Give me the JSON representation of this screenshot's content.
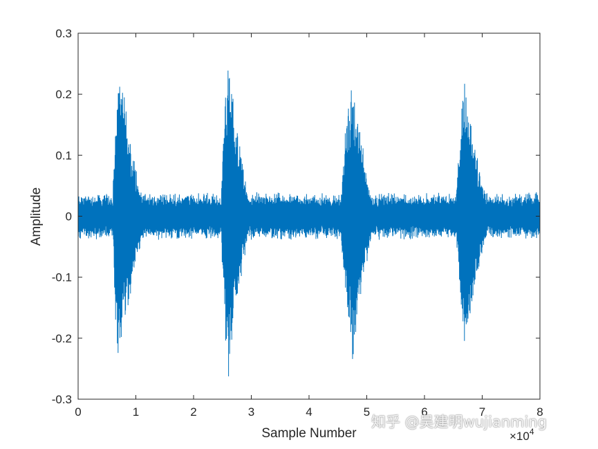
{
  "chart_data": {
    "type": "line",
    "title": "",
    "xlabel": "Sample Number",
    "ylabel": "Amplitude",
    "xlim": [
      0,
      80000
    ],
    "ylim": [
      -0.3,
      0.3
    ],
    "x_ticks": [
      0,
      1,
      2,
      3,
      4,
      5,
      6,
      7,
      8
    ],
    "x_tick_labels": [
      "0",
      "1",
      "2",
      "3",
      "4",
      "5",
      "6",
      "7",
      "8"
    ],
    "x_exponent_base": "×10",
    "x_exponent_power": "4",
    "y_ticks": [
      0.3,
      0.2,
      0.1,
      0,
      -0.1,
      -0.2,
      -0.3
    ],
    "y_tick_labels": [
      "0.3",
      "0.2",
      "0.1",
      "0",
      "-0.1",
      "-0.2",
      "-0.3"
    ],
    "grid": false,
    "line_color": "#0072BD",
    "noise_floor_amplitude": 0.04,
    "series": [
      {
        "bursts": [
          {
            "start": 6000,
            "peak_at": 7000,
            "end": 12500,
            "peak_amplitude": 0.27
          },
          {
            "start": 24800,
            "peak_at": 26000,
            "end": 30500,
            "peak_amplitude": 0.285
          },
          {
            "start": 45500,
            "peak_at": 47500,
            "end": 52000,
            "peak_amplitude": 0.25
          },
          {
            "start": 65500,
            "peak_at": 67000,
            "end": 72000,
            "peak_amplitude": 0.24
          }
        ]
      }
    ]
  },
  "watermark": "知乎 @吴建明wujianming"
}
